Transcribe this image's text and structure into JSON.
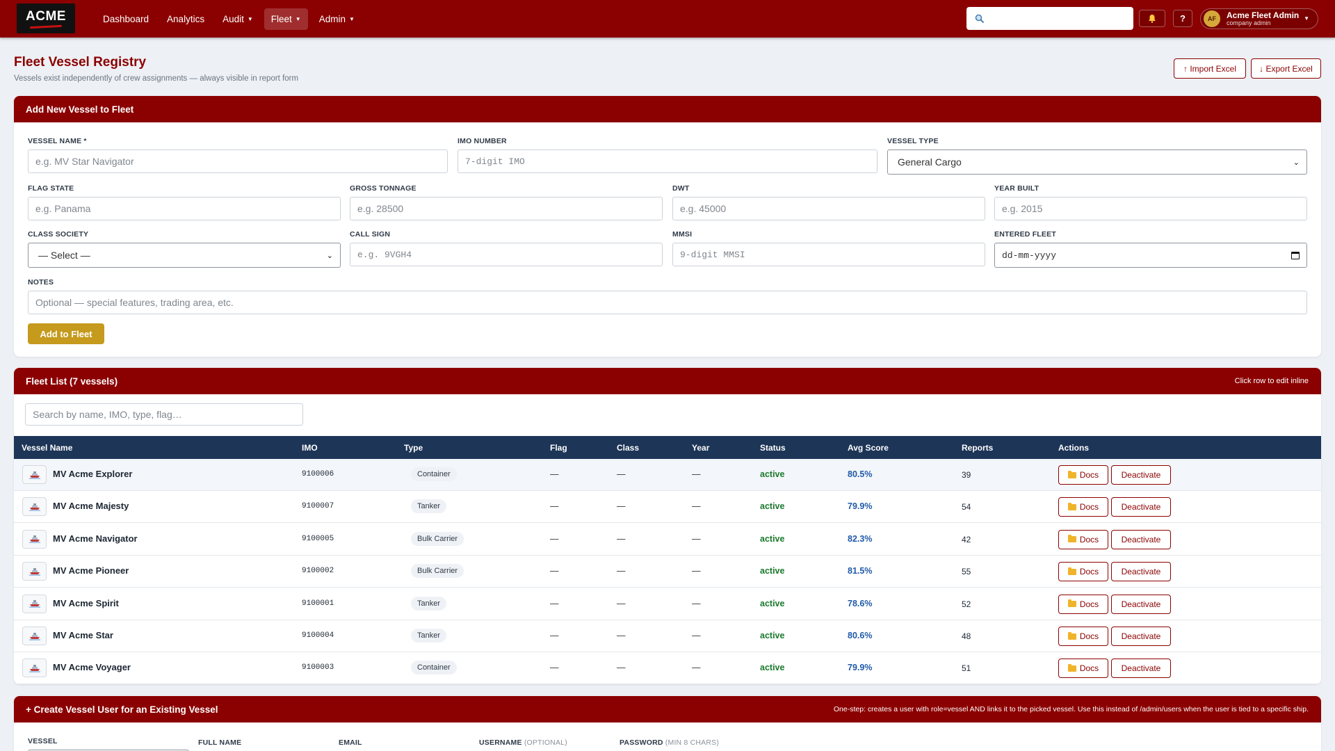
{
  "nav": {
    "logo": "ACME",
    "links": [
      {
        "label": "Dashboard",
        "dropdown": false,
        "active": false
      },
      {
        "label": "Analytics",
        "dropdown": false,
        "active": false
      },
      {
        "label": "Audit",
        "dropdown": true,
        "active": false
      },
      {
        "label": "Fleet",
        "dropdown": true,
        "active": true
      },
      {
        "label": "Admin",
        "dropdown": true,
        "active": false
      }
    ],
    "search_placeholder": "",
    "user": {
      "initials": "AF",
      "name": "Acme Fleet Admin",
      "role": "company admin"
    },
    "help_label": "?"
  },
  "page": {
    "title": "Fleet Vessel Registry",
    "subtitle": "Vessels exist independently of crew assignments — always visible in report form",
    "import_label": "↑ Import Excel",
    "export_label": "↓ Export Excel"
  },
  "add_form": {
    "title": "Add New Vessel to Fleet",
    "vessel_name": {
      "label": "VESSEL NAME *",
      "placeholder": "e.g. MV Star Navigator"
    },
    "imo": {
      "label": "IMO NUMBER",
      "placeholder": "7-digit IMO"
    },
    "vessel_type": {
      "label": "VESSEL TYPE",
      "value": "General Cargo"
    },
    "flag": {
      "label": "FLAG STATE",
      "placeholder": "e.g. Panama"
    },
    "gross_tonnage": {
      "label": "GROSS TONNAGE",
      "placeholder": "e.g. 28500"
    },
    "dwt": {
      "label": "DWT",
      "placeholder": "e.g. 45000"
    },
    "year_built": {
      "label": "YEAR BUILT",
      "placeholder": "e.g. 2015"
    },
    "class_society": {
      "label": "CLASS SOCIETY",
      "value": "— Select —"
    },
    "call_sign": {
      "label": "CALL SIGN",
      "placeholder": "e.g. 9VGH4"
    },
    "mmsi": {
      "label": "MMSI",
      "placeholder": "9-digit MMSI"
    },
    "entered_fleet": {
      "label": "ENTERED FLEET",
      "value": "dd-mm-yyyy"
    },
    "notes": {
      "label": "NOTES",
      "placeholder": "Optional — special features, trading area, etc."
    },
    "submit_label": "Add to Fleet"
  },
  "fleet": {
    "title": "Fleet List (7 vessels)",
    "hint": "Click row to edit inline",
    "search_placeholder": "Search by name, IMO, type, flag…",
    "columns": [
      "Vessel Name",
      "IMO",
      "Type",
      "Flag",
      "Class",
      "Year",
      "Status",
      "Avg Score",
      "Reports",
      "Actions"
    ],
    "docs_label": "Docs",
    "deactivate_label": "Deactivate",
    "rows": [
      {
        "name": "MV Acme Explorer",
        "imo": "9100006",
        "type": "Container",
        "flag": "—",
        "class": "—",
        "year": "—",
        "status": "active",
        "score": "80.5%",
        "reports": "39"
      },
      {
        "name": "MV Acme Majesty",
        "imo": "9100007",
        "type": "Tanker",
        "flag": "—",
        "class": "—",
        "year": "—",
        "status": "active",
        "score": "79.9%",
        "reports": "54"
      },
      {
        "name": "MV Acme Navigator",
        "imo": "9100005",
        "type": "Bulk Carrier",
        "flag": "—",
        "class": "—",
        "year": "—",
        "status": "active",
        "score": "82.3%",
        "reports": "42"
      },
      {
        "name": "MV Acme Pioneer",
        "imo": "9100002",
        "type": "Bulk Carrier",
        "flag": "—",
        "class": "—",
        "year": "—",
        "status": "active",
        "score": "81.5%",
        "reports": "55"
      },
      {
        "name": "MV Acme Spirit",
        "imo": "9100001",
        "type": "Tanker",
        "flag": "—",
        "class": "—",
        "year": "—",
        "status": "active",
        "score": "78.6%",
        "reports": "52"
      },
      {
        "name": "MV Acme Star",
        "imo": "9100004",
        "type": "Tanker",
        "flag": "—",
        "class": "—",
        "year": "—",
        "status": "active",
        "score": "80.6%",
        "reports": "48"
      },
      {
        "name": "MV Acme Voyager",
        "imo": "9100003",
        "type": "Container",
        "flag": "—",
        "class": "—",
        "year": "—",
        "status": "active",
        "score": "79.9%",
        "reports": "51"
      }
    ]
  },
  "create_user": {
    "title": "+ Create Vessel User for an Existing Vessel",
    "note": "One-step: creates a user with role=vessel AND links it to the picked vessel. Use this instead of /admin/users when the user is tied to a specific ship.",
    "labels": {
      "vessel": "VESSEL",
      "full_name": "FULL NAME",
      "email": "EMAIL",
      "username": "USERNAME",
      "username_opt": "(OPTIONAL)",
      "password": "PASSWORD",
      "password_opt": "(MIN 8 CHARS)"
    }
  },
  "icons": {
    "search": "search-icon",
    "bell": "bell-icon",
    "ship": "ship-icon",
    "folder": "folder-icon",
    "calendar": "calendar-icon"
  },
  "colors": {
    "brand": "#8b0000",
    "table_header": "#1d3557",
    "accent_gold": "#c59a1d",
    "status_active": "#1a7a2b",
    "score": "#1f5aa8"
  }
}
